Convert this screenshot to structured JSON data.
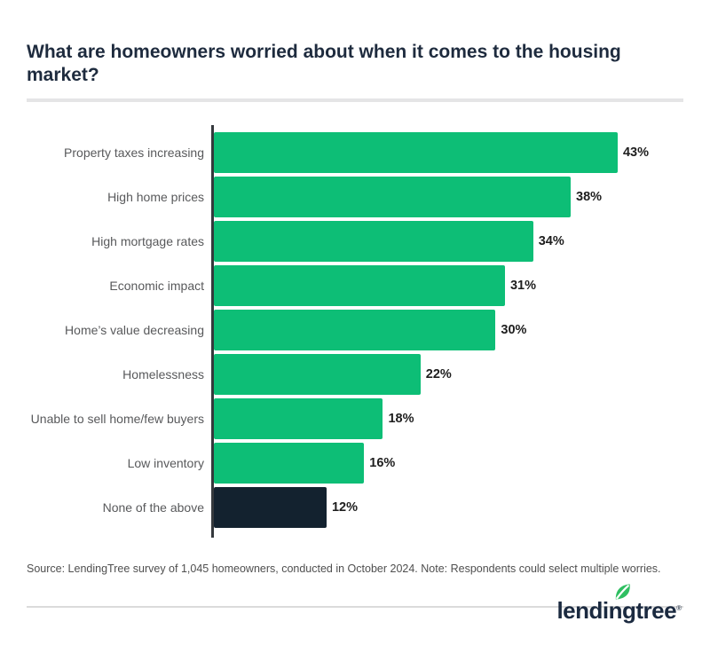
{
  "header": {
    "title": "What are homeowners worried about when it comes to the housing market?"
  },
  "chart_data": {
    "type": "bar",
    "orientation": "horizontal",
    "title": "What are homeowners worried about when it comes to the housing market?",
    "categories": [
      "Property taxes increasing",
      "High home prices",
      "High mortgage rates",
      "Economic impact",
      "Home’s value decreasing",
      "Homelessness",
      "Unable to sell home/few buyers",
      "Low inventory",
      "None of the above"
    ],
    "values": [
      43,
      38,
      34,
      31,
      30,
      22,
      18,
      16,
      12
    ],
    "value_labels": [
      "43%",
      "38%",
      "34%",
      "31%",
      "30%",
      "22%",
      "18%",
      "16%",
      "12%"
    ],
    "bar_colors": [
      "#0DBE76",
      "#0DBE76",
      "#0DBE76",
      "#0DBE76",
      "#0DBE76",
      "#0DBE76",
      "#0DBE76",
      "#0DBE76",
      "#13222F"
    ],
    "xlabel": "",
    "ylabel": "",
    "xlim": [
      0,
      50
    ],
    "grid": false,
    "legend": "none"
  },
  "footer": {
    "source": "Source: LendingTree survey of 1,045 homeowners, conducted in October 2024. Note: Respondents could select multiple worries.",
    "logo_text": "lendingtree",
    "registered_mark": "®"
  },
  "colors": {
    "bar_green": "#0DBE76",
    "bar_navy": "#13222F",
    "title_navy": "#1E2B3E",
    "label_gray": "#58595B",
    "leaf_green": "#2FBF61",
    "logo_navy": "#1B2A40",
    "divider_gray": "#E5E5E6"
  }
}
